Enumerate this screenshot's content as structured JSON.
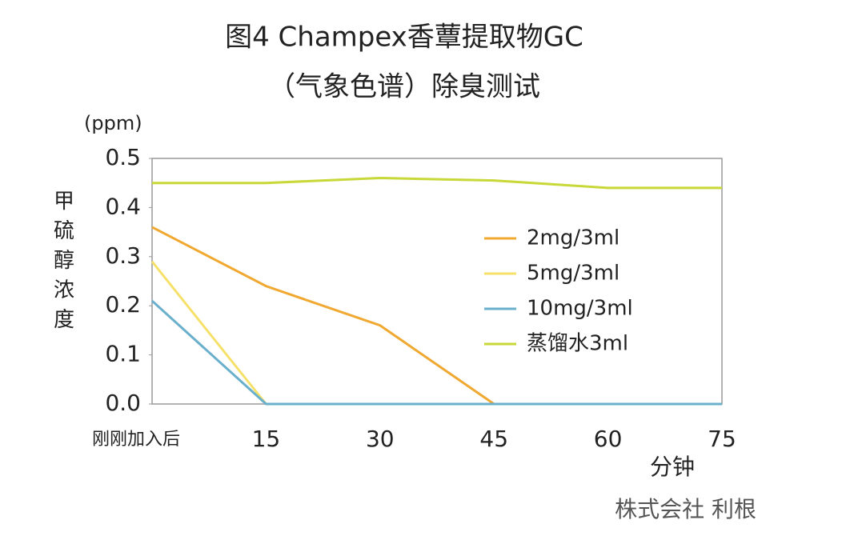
{
  "chart_data": {
    "type": "line",
    "title": "图4 Champex香蕈提取物GC",
    "subtitle": "（气象色谱）除臭测试",
    "y_unit": "(ppm)",
    "y_label": "甲硫醇浓度",
    "x_label": "分钟",
    "source": "株式会社 利根",
    "categories": [
      "刚刚加入后",
      "15",
      "30",
      "45",
      "60",
      "75"
    ],
    "ylim": [
      0,
      0.5
    ],
    "yticks": [
      {
        "value": 0,
        "label": "0.0"
      },
      0.1,
      0.2,
      0.3,
      0.4,
      0.5
    ],
    "legend": "right",
    "series": [
      {
        "name": "2mg/3ml",
        "color": "#f0a830",
        "values": [
          0.36,
          0.24,
          0.16,
          0,
          0,
          0
        ]
      },
      {
        "name": "5mg/3ml",
        "color": "#f5e06a",
        "values": [
          0.29,
          0,
          0,
          0,
          0,
          0
        ]
      },
      {
        "name": "10mg/3ml",
        "color": "#6ab0cc",
        "values": [
          0.21,
          0,
          0,
          0,
          0,
          0
        ]
      },
      {
        "name": "蒸馏水3ml",
        "color": "#c8d838",
        "values": [
          0.45,
          0.45,
          0.46,
          0.455,
          0.44,
          0.44
        ]
      }
    ]
  }
}
